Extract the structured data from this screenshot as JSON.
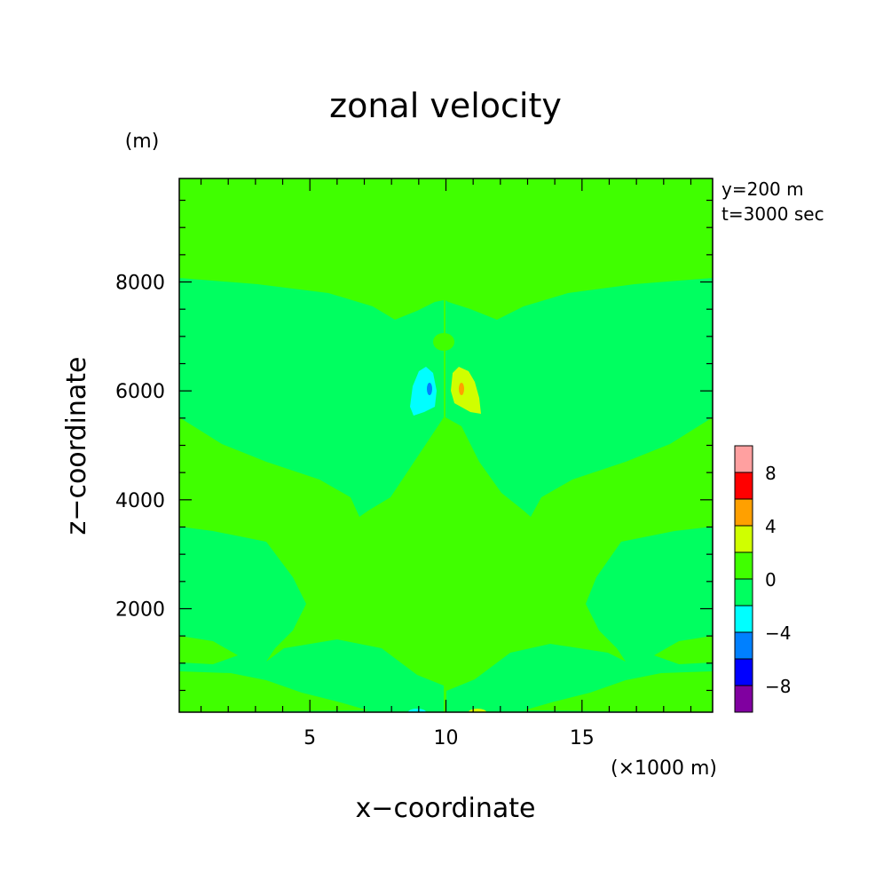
{
  "chart_data": {
    "type": "heatmap",
    "title": "zonal velocity",
    "xlabel": "x−coordinate",
    "ylabel": "z−coordinate",
    "x_unit": "(×1000 m)",
    "y_unit": "(m)",
    "annotations": [
      "y=200 m",
      "t=3000 sec"
    ],
    "xlim": [
      0.2,
      19.8
    ],
    "ylim": [
      100,
      9900
    ],
    "x_ticks": [
      5,
      10,
      15
    ],
    "y_ticks": [
      2000,
      4000,
      6000,
      8000
    ],
    "colorbar": {
      "levels": [
        -10,
        -8,
        -6,
        -4,
        -2,
        0,
        2,
        4,
        6,
        8,
        10
      ],
      "tick_labels": [
        "-8",
        "-4",
        "0",
        "4",
        "8"
      ],
      "colors": [
        "#8000a0",
        "#0000ff",
        "#0080ff",
        "#00ffff",
        "#00ff60",
        "#40ff00",
        "#d0ff00",
        "#ffa000",
        "#ff0000",
        "#ffa0a0"
      ]
    },
    "regions": [
      {
        "band": "0 to 2",
        "color": "#40ff00",
        "where": "background above z≈8000 m and central column around x=10"
      },
      {
        "band": "-2 to 0",
        "color": "#00ff60",
        "where": "left half, between z≈600 and z≈8100 outside central column"
      },
      {
        "band": "-2 to 0",
        "color": "#00ff60",
        "where": "right half mirrored band"
      },
      {
        "band": "-4 to -2",
        "color": "#00ffff",
        "where": "cell near x≈9.4 km, z≈6000 m"
      },
      {
        "band": "-6 to -4",
        "color": "#0080ff",
        "where": "core near x≈9.4 km, z≈6000 m"
      },
      {
        "band": "2 to 4",
        "color": "#d0ff00",
        "where": "cell near x≈10.7 km, z≈6000 m"
      },
      {
        "band": "4 to 6",
        "color": "#ffa000",
        "where": "core near x≈10.6 km, z≈6000 m"
      }
    ]
  }
}
